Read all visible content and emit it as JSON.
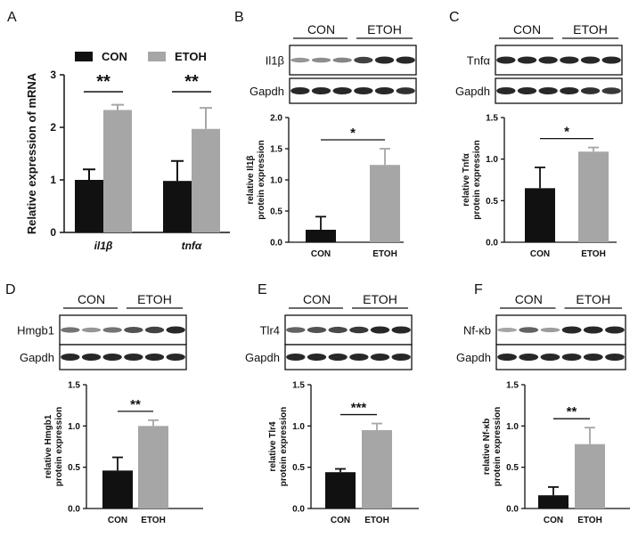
{
  "colors": {
    "con": "#111111",
    "etoh": "#a6a6a6"
  },
  "panel_a": {
    "letter": "A",
    "legend": [
      "CON",
      "ETOH"
    ]
  },
  "panels": [
    {
      "letter": "B",
      "groups": [
        "CON",
        "ETOH"
      ],
      "genes": [
        "Il1β",
        "Gapdh"
      ]
    },
    {
      "letter": "C",
      "groups": [
        "CON",
        "ETOH"
      ],
      "genes": [
        "Tnfα",
        "Gapdh"
      ]
    },
    {
      "letter": "D",
      "groups": [
        "CON",
        "ETOH"
      ],
      "genes": [
        "Hmgb1",
        "Gapdh"
      ]
    },
    {
      "letter": "E",
      "groups": [
        "CON",
        "ETOH"
      ],
      "genes": [
        "Tlr4",
        "Gapdh"
      ]
    },
    {
      "letter": "F",
      "groups": [
        "CON",
        "ETOH"
      ],
      "genes": [
        "Nf-κb",
        "Gapdh"
      ]
    }
  ],
  "blots": [
    {
      "target": [
        0.35,
        0.4,
        0.45,
        0.85,
        1.0,
        1.0
      ],
      "gapdh": [
        1,
        1,
        1,
        1,
        1,
        0.95
      ]
    },
    {
      "target": [
        1,
        1,
        1,
        1,
        1,
        1
      ],
      "gapdh": [
        1,
        1,
        1,
        1,
        0.95,
        0.9
      ]
    },
    {
      "target": [
        0.55,
        0.35,
        0.55,
        0.75,
        0.85,
        1.0
      ],
      "gapdh": [
        1,
        1,
        1,
        1,
        1,
        1
      ]
    },
    {
      "target": [
        0.65,
        0.75,
        0.8,
        0.9,
        1.0,
        1.0
      ],
      "gapdh": [
        1,
        1,
        1,
        1,
        1,
        1
      ]
    },
    {
      "target": [
        0.25,
        0.65,
        0.3,
        1.0,
        1.0,
        1.0
      ],
      "gapdh": [
        1,
        1,
        1,
        1,
        1,
        1
      ]
    }
  ],
  "chart_data": [
    {
      "panel": "A",
      "type": "bar",
      "categories": [
        "il1β",
        "tnfα"
      ],
      "series": [
        {
          "name": "CON",
          "values": [
            1.0,
            0.98
          ],
          "errors": [
            0.2,
            0.38
          ]
        },
        {
          "name": "ETOH",
          "values": [
            2.33,
            1.97
          ],
          "errors": [
            0.1,
            0.4
          ]
        }
      ],
      "ylabel": "Relative expression of mRNA",
      "ylim": [
        0,
        3
      ],
      "yticks": [
        "0",
        "1",
        "2",
        "3"
      ],
      "significance": [
        "**",
        "**"
      ]
    },
    {
      "panel": "B",
      "type": "bar",
      "categories": [
        "CON",
        "ETOH"
      ],
      "values": [
        0.2,
        1.24
      ],
      "errors": [
        0.21,
        0.26
      ],
      "ylabel": [
        "relative  Il1β",
        "protein expression"
      ],
      "ylim": [
        0,
        2.0
      ],
      "yticks": [
        "0.0",
        "0.5",
        "1.0",
        "1.5",
        "2.0"
      ],
      "significance": "*"
    },
    {
      "panel": "C",
      "type": "bar",
      "categories": [
        "CON",
        "ETOH"
      ],
      "values": [
        0.65,
        1.09
      ],
      "errors": [
        0.25,
        0.05
      ],
      "ylabel": [
        "relative  Tnfα",
        "protein expression"
      ],
      "ylim": [
        0,
        1.5
      ],
      "yticks": [
        "0.0",
        "0.5",
        "1.0",
        "1.5"
      ],
      "significance": "*"
    },
    {
      "panel": "D",
      "type": "bar",
      "categories": [
        "CON",
        "ETOH"
      ],
      "values": [
        0.46,
        1.0
      ],
      "errors": [
        0.16,
        0.07
      ],
      "ylabel": [
        "relative  Hmgb1",
        "protein expression"
      ],
      "ylim": [
        0,
        1.5
      ],
      "yticks": [
        "0.0",
        "0.5",
        "1.0",
        "1.5"
      ],
      "significance": "**"
    },
    {
      "panel": "E",
      "type": "bar",
      "categories": [
        "CON",
        "ETOH"
      ],
      "values": [
        0.44,
        0.95
      ],
      "errors": [
        0.04,
        0.08
      ],
      "ylabel": [
        "relative  Tlr4",
        "protein expression"
      ],
      "ylim": [
        0,
        1.5
      ],
      "yticks": [
        "0.0",
        "0.5",
        "1.0",
        "1.5"
      ],
      "significance": "***"
    },
    {
      "panel": "F",
      "type": "bar",
      "categories": [
        "CON",
        "ETOH"
      ],
      "values": [
        0.16,
        0.78
      ],
      "errors": [
        0.1,
        0.2
      ],
      "ylabel": [
        "relative  Nf-κb",
        "protein expression"
      ],
      "ylim": [
        0,
        1.5
      ],
      "yticks": [
        "0.0",
        "0.5",
        "1.0",
        "1.5"
      ],
      "significance": "**"
    }
  ]
}
